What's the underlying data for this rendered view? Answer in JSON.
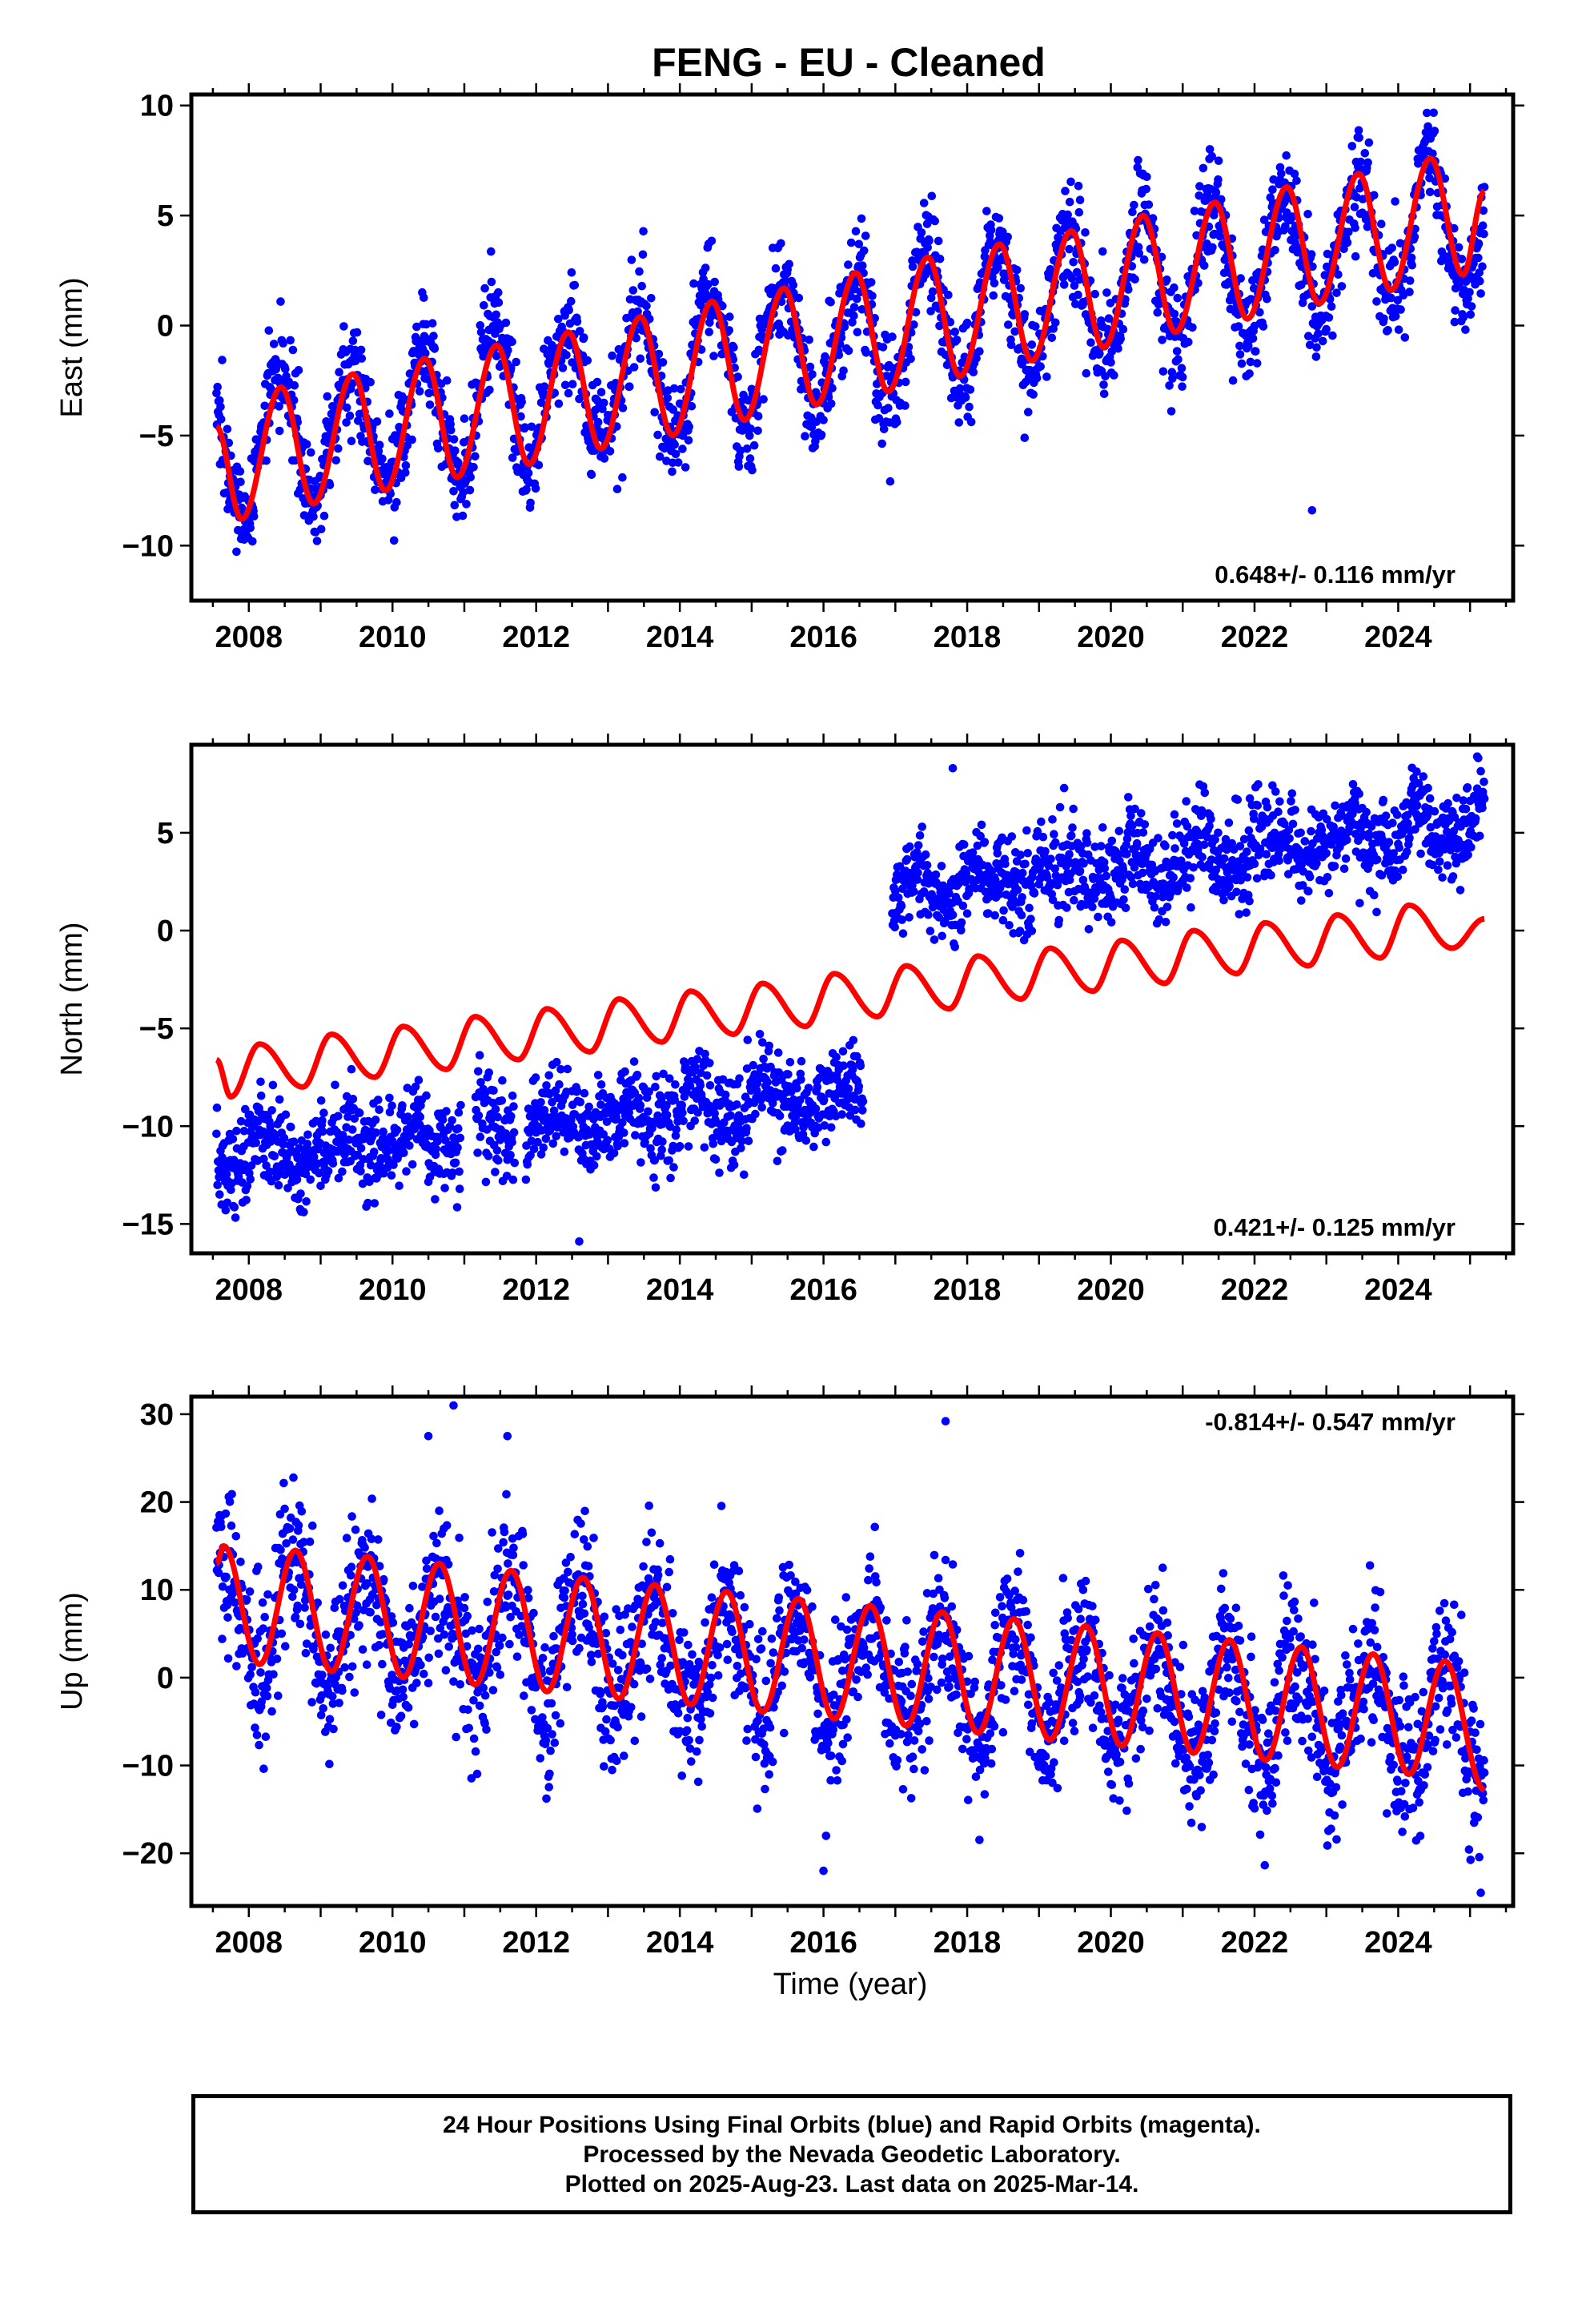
{
  "title": "FENG  - EU - Cleaned",
  "xaxis": {
    "label": "Time (year)",
    "range": [
      2007.2,
      2025.6
    ],
    "ticks": [
      2008,
      2010,
      2012,
      2014,
      2016,
      2018,
      2020,
      2022,
      2024
    ]
  },
  "colors": {
    "observations": "#0000ff",
    "model": "#ff0000",
    "frame": "#000000"
  },
  "chart_data": [
    {
      "type": "scatter",
      "component": "East",
      "ylabel": "East (mm)",
      "ylim": [
        -12.5,
        10.5
      ],
      "yticks": [
        10,
        5,
        0,
        -5,
        -10
      ],
      "ytick_labels": [
        "10",
        "5",
        "0",
        "−5",
        "−10"
      ],
      "rate_label": "0.648+/- 0.116 mm/yr",
      "rate_label_position": "bottom-right",
      "data_span": [
        2007.55,
        2025.2
      ],
      "series": [
        {
          "name": "Final Orbits",
          "kind": "points",
          "trend": {
            "at_start": -5.8,
            "at_end": 4.8
          },
          "annual_amplitude": 3.0,
          "annual_peak_phase": 0.42,
          "noise_sd": 1.2
        },
        {
          "name": "model",
          "kind": "line",
          "samples": [
            {
              "x": 2007.55,
              "y": -4.6
            },
            {
              "x": 2007.9,
              "y": -8.8
            },
            {
              "x": 2008.45,
              "y": -2.8
            },
            {
              "x": 2008.9,
              "y": -8.1
            },
            {
              "x": 2009.45,
              "y": -2.2
            },
            {
              "x": 2009.9,
              "y": -7.5
            },
            {
              "x": 2010.45,
              "y": -1.5
            },
            {
              "x": 2010.9,
              "y": -6.9
            },
            {
              "x": 2011.45,
              "y": -0.9
            },
            {
              "x": 2011.9,
              "y": -6.3
            },
            {
              "x": 2012.45,
              "y": -0.3
            },
            {
              "x": 2012.9,
              "y": -5.6
            },
            {
              "x": 2013.45,
              "y": 0.4
            },
            {
              "x": 2013.9,
              "y": -5.0
            },
            {
              "x": 2014.45,
              "y": 1.1
            },
            {
              "x": 2014.9,
              "y": -4.3
            },
            {
              "x": 2015.45,
              "y": 1.7
            },
            {
              "x": 2015.9,
              "y": -3.6
            },
            {
              "x": 2016.45,
              "y": 2.4
            },
            {
              "x": 2016.9,
              "y": -3.0
            },
            {
              "x": 2017.45,
              "y": 3.1
            },
            {
              "x": 2017.9,
              "y": -2.3
            },
            {
              "x": 2018.45,
              "y": 3.7
            },
            {
              "x": 2018.9,
              "y": -1.6
            },
            {
              "x": 2019.45,
              "y": 4.3
            },
            {
              "x": 2019.9,
              "y": -1.0
            },
            {
              "x": 2020.45,
              "y": 5.0
            },
            {
              "x": 2020.9,
              "y": -0.3
            },
            {
              "x": 2021.45,
              "y": 5.6
            },
            {
              "x": 2021.9,
              "y": 0.3
            },
            {
              "x": 2022.45,
              "y": 6.3
            },
            {
              "x": 2022.9,
              "y": 1.0
            },
            {
              "x": 2023.45,
              "y": 6.9
            },
            {
              "x": 2023.9,
              "y": 1.6
            },
            {
              "x": 2024.45,
              "y": 7.6
            },
            {
              "x": 2024.9,
              "y": 2.3
            },
            {
              "x": 2025.2,
              "y": 6.1
            }
          ]
        }
      ],
      "outliers": [
        {
          "x": 2022.8,
          "y": -8.4
        },
        {
          "x": 2018.8,
          "y": -5.1
        },
        {
          "x": 2021.7,
          "y": -2.5
        }
      ]
    },
    {
      "type": "scatter",
      "component": "North",
      "ylabel": "North (mm)",
      "ylim": [
        -16.5,
        9.5
      ],
      "yticks": [
        5,
        0,
        -5,
        -10,
        -15
      ],
      "ytick_labels": [
        "5",
        "0",
        "−5",
        "−10",
        "−15"
      ],
      "rate_label": "0.421+/- 0.125 mm/yr",
      "rate_label_position": "bottom-right",
      "data_span": [
        2007.55,
        2025.2
      ],
      "data_gaps": [
        [
          2010.95,
          2011.15
        ],
        [
          2011.7,
          2011.85
        ],
        [
          2016.55,
          2016.95
        ]
      ],
      "offset": {
        "x": 2016.95,
        "before_start": -11.5,
        "before_end": -8.2,
        "after_start": 1.8,
        "after_end": 5.6
      },
      "series": [
        {
          "name": "Final Orbits",
          "kind": "points",
          "annual_amplitude": 0.8,
          "noise_sd": 1.15
        },
        {
          "name": "model",
          "kind": "line",
          "samples": [
            {
              "x": 2007.55,
              "y": -6.6
            },
            {
              "x": 2007.75,
              "y": -8.5
            },
            {
              "x": 2008.15,
              "y": -5.8
            },
            {
              "x": 2008.75,
              "y": -8.0
            },
            {
              "x": 2009.15,
              "y": -5.3
            },
            {
              "x": 2009.75,
              "y": -7.5
            },
            {
              "x": 2010.15,
              "y": -4.9
            },
            {
              "x": 2010.75,
              "y": -7.1
            },
            {
              "x": 2011.15,
              "y": -4.4
            },
            {
              "x": 2011.75,
              "y": -6.6
            },
            {
              "x": 2012.15,
              "y": -4.0
            },
            {
              "x": 2012.75,
              "y": -6.2
            },
            {
              "x": 2013.15,
              "y": -3.5
            },
            {
              "x": 2013.75,
              "y": -5.7
            },
            {
              "x": 2014.15,
              "y": -3.1
            },
            {
              "x": 2014.75,
              "y": -5.3
            },
            {
              "x": 2015.15,
              "y": -2.7
            },
            {
              "x": 2015.75,
              "y": -4.9
            },
            {
              "x": 2016.15,
              "y": -2.2
            },
            {
              "x": 2016.75,
              "y": -4.4
            },
            {
              "x": 2017.15,
              "y": -1.8
            },
            {
              "x": 2017.75,
              "y": -4.0
            },
            {
              "x": 2018.15,
              "y": -1.3
            },
            {
              "x": 2018.75,
              "y": -3.5
            },
            {
              "x": 2019.15,
              "y": -0.9
            },
            {
              "x": 2019.75,
              "y": -3.1
            },
            {
              "x": 2020.15,
              "y": -0.5
            },
            {
              "x": 2020.75,
              "y": -2.7
            },
            {
              "x": 2021.15,
              "y": 0.0
            },
            {
              "x": 2021.75,
              "y": -2.2
            },
            {
              "x": 2022.15,
              "y": 0.4
            },
            {
              "x": 2022.75,
              "y": -1.8
            },
            {
              "x": 2023.15,
              "y": 0.8
            },
            {
              "x": 2023.75,
              "y": -1.4
            },
            {
              "x": 2024.15,
              "y": 1.3
            },
            {
              "x": 2024.75,
              "y": -0.9
            },
            {
              "x": 2025.2,
              "y": 0.6
            }
          ]
        }
      ],
      "outliers": [
        {
          "x": 2012.6,
          "y": -15.9
        },
        {
          "x": 2017.8,
          "y": 8.3
        },
        {
          "x": 2025.1,
          "y": 8.9
        }
      ]
    },
    {
      "type": "scatter",
      "component": "Up",
      "ylabel": "Up (mm)",
      "ylim": [
        -26,
        32
      ],
      "yticks": [
        30,
        20,
        10,
        0,
        -10,
        -20
      ],
      "ytick_labels": [
        "30",
        "20",
        "10",
        "0",
        "−10",
        "−20"
      ],
      "rate_label": "-0.814+/- 0.547 mm/yr",
      "rate_label_position": "top-right",
      "data_span": [
        2007.55,
        2025.2
      ],
      "series": [
        {
          "name": "Final Orbits",
          "kind": "points",
          "trend": {
            "at_start": 7.5,
            "at_end": -5.5
          },
          "annual_amplitude": 6.5,
          "annual_peak_phase": 0.62,
          "noise_sd": 4.2
        },
        {
          "name": "model",
          "kind": "line",
          "samples": [
            {
              "x": 2007.55,
              "y": 13.0
            },
            {
              "x": 2007.65,
              "y": 15.0
            },
            {
              "x": 2008.15,
              "y": 1.5
            },
            {
              "x": 2008.65,
              "y": 14.5
            },
            {
              "x": 2009.15,
              "y": 0.7
            },
            {
              "x": 2009.65,
              "y": 13.8
            },
            {
              "x": 2010.15,
              "y": 0.0
            },
            {
              "x": 2010.65,
              "y": 13.0
            },
            {
              "x": 2011.15,
              "y": -0.8
            },
            {
              "x": 2011.65,
              "y": 12.2
            },
            {
              "x": 2012.15,
              "y": -1.6
            },
            {
              "x": 2012.65,
              "y": 11.4
            },
            {
              "x": 2013.15,
              "y": -2.4
            },
            {
              "x": 2013.65,
              "y": 10.6
            },
            {
              "x": 2014.15,
              "y": -3.1
            },
            {
              "x": 2014.65,
              "y": 9.8
            },
            {
              "x": 2015.15,
              "y": -3.9
            },
            {
              "x": 2015.65,
              "y": 9.0
            },
            {
              "x": 2016.15,
              "y": -4.7
            },
            {
              "x": 2016.65,
              "y": 8.2
            },
            {
              "x": 2017.15,
              "y": -5.5
            },
            {
              "x": 2017.65,
              "y": 7.5
            },
            {
              "x": 2018.15,
              "y": -6.3
            },
            {
              "x": 2018.65,
              "y": 6.7
            },
            {
              "x": 2019.15,
              "y": -7.1
            },
            {
              "x": 2019.65,
              "y": 5.9
            },
            {
              "x": 2020.15,
              "y": -7.8
            },
            {
              "x": 2020.65,
              "y": 5.1
            },
            {
              "x": 2021.15,
              "y": -8.6
            },
            {
              "x": 2021.65,
              "y": 4.3
            },
            {
              "x": 2022.15,
              "y": -9.4
            },
            {
              "x": 2022.65,
              "y": 3.5
            },
            {
              "x": 2023.15,
              "y": -10.2
            },
            {
              "x": 2023.65,
              "y": 2.7
            },
            {
              "x": 2024.15,
              "y": -11.0
            },
            {
              "x": 2024.65,
              "y": 1.9
            },
            {
              "x": 2025.2,
              "y": -12.8
            }
          ]
        }
      ],
      "outliers": [
        {
          "x": 2010.85,
          "y": 31.0
        },
        {
          "x": 2010.5,
          "y": 27.5
        },
        {
          "x": 2011.6,
          "y": 27.5
        },
        {
          "x": 2017.7,
          "y": 29.2
        },
        {
          "x": 2025.15,
          "y": -24.5
        },
        {
          "x": 2016.0,
          "y": -22.0
        }
      ]
    }
  ],
  "footer": {
    "lines": [
      "24 Hour Positions Using Final Orbits (blue) and Rapid Orbits (magenta).",
      "Processed by the Nevada Geodetic Laboratory.",
      "Plotted on 2025-Aug-23. Last data on 2025-Mar-14."
    ]
  }
}
